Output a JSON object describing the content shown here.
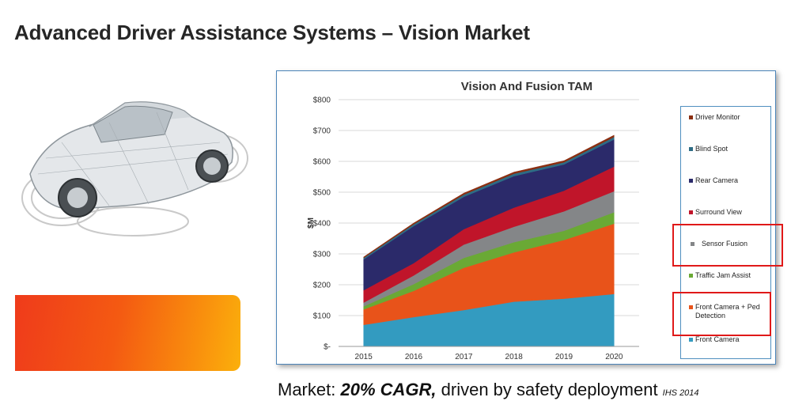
{
  "slide": {
    "title": "Advanced Driver Assistance Systems – Vision Market",
    "caption_prefix": "Market: ",
    "caption_emphasis": "20% CAGR,",
    "caption_suffix": " driven by safety deployment ",
    "caption_source": "IHS 2014"
  },
  "colors": {
    "accent_orange": "#f45a12",
    "highlight_box": "#e01919",
    "chart_border": "#4b84b8"
  },
  "chart_data": {
    "type": "area",
    "stacked": true,
    "title": "Vision And Fusion TAM",
    "ylabel": "$M",
    "xlabel": "",
    "ylim": [
      0,
      800
    ],
    "y_ticks": [
      "$-",
      "$100",
      "$200",
      "$300",
      "$400",
      "$500",
      "$600",
      "$700",
      "$800"
    ],
    "y_tick_values": [
      0,
      100,
      200,
      300,
      400,
      500,
      600,
      700,
      800
    ],
    "grid": true,
    "legend_position": "right",
    "x": [
      "2015",
      "2016",
      "2017",
      "2018",
      "2019",
      "2020"
    ],
    "series": [
      {
        "name": "Front Camera",
        "color": "#339bc0",
        "values": [
          70,
          95,
          118,
          145,
          155,
          170
        ]
      },
      {
        "name": "Front Camera + Ped Detection",
        "color": "#e8531a",
        "values": [
          50,
          85,
          137,
          160,
          190,
          228
        ]
      },
      {
        "name": "Traffic Jam Assist",
        "color": "#6aa935",
        "values": [
          10,
          22,
          32,
          33,
          30,
          37
        ]
      },
      {
        "name": "Sensor Fusion",
        "color": "#848688",
        "values": [
          12,
          28,
          43,
          50,
          63,
          68
        ]
      },
      {
        "name": "Surround View",
        "color": "#c0152a",
        "values": [
          40,
          40,
          50,
          62,
          67,
          80
        ]
      },
      {
        "name": "Rear Camera",
        "color": "#2b2a6a",
        "values": [
          100,
          120,
          105,
          102,
          85,
          88
        ]
      },
      {
        "name": "Blind Spot",
        "color": "#2d6c85",
        "values": [
          5,
          6,
          7,
          8,
          7,
          8
        ]
      },
      {
        "name": "Driver Monitor",
        "color": "#8b2e10",
        "values": [
          3,
          4,
          5,
          5,
          5,
          6
        ]
      }
    ],
    "legend_order": [
      "Driver Monitor",
      "Blind Spot",
      "Rear Camera",
      "Surround View",
      "Sensor Fusion",
      "Traffic Jam Assist",
      "Front Camera + Ped Detection",
      "Front Camera"
    ],
    "highlighted": [
      "Sensor Fusion",
      "Front Camera + Ped Detection"
    ]
  }
}
